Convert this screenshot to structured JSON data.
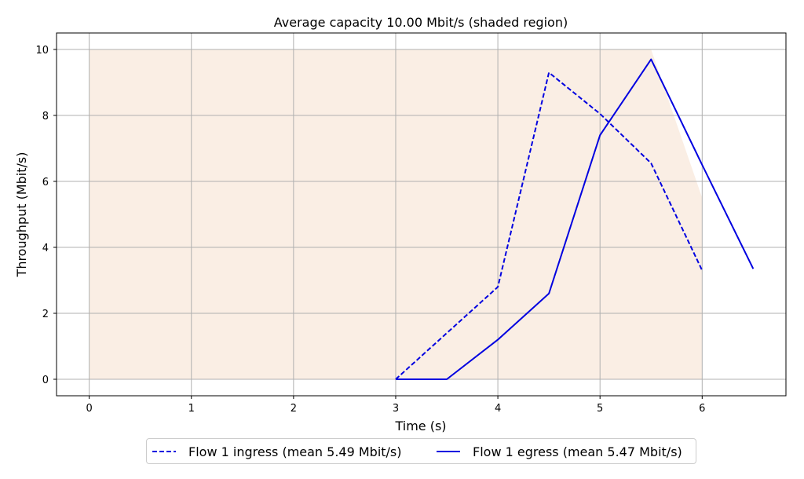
{
  "chart_data": {
    "type": "line",
    "title": "Average capacity 10.00 Mbit/s (shaded region)",
    "xlabel": "Time (s)",
    "ylabel": "Throughput (Mbit/s)",
    "xlim": [
      -0.32,
      6.82
    ],
    "ylim": [
      -0.5,
      10.5
    ],
    "xticks": [
      0,
      1,
      2,
      3,
      4,
      5,
      6
    ],
    "yticks": [
      0,
      2,
      4,
      6,
      8,
      10
    ],
    "grid": true,
    "legend_position": "bottom-center",
    "capacity": {
      "color": "#faeee4",
      "x": [
        0,
        5.5,
        6
      ],
      "y": [
        10,
        10,
        5.5
      ]
    },
    "series": [
      {
        "name": "Flow 1 ingress (mean 5.49 Mbit/s)",
        "style": "dashed",
        "color": "#0000e0",
        "x": [
          3.0,
          4.0,
          4.5,
          5.0,
          5.5,
          6.0
        ],
        "y": [
          0.0,
          2.8,
          9.3,
          8.05,
          6.55,
          3.3
        ]
      },
      {
        "name": "Flow 1 egress (mean 5.47 Mbit/s)",
        "style": "solid",
        "color": "#0000e0",
        "x": [
          3.0,
          3.5,
          4.0,
          4.5,
          5.0,
          5.5,
          6.0,
          6.5
        ],
        "y": [
          0.0,
          0.0,
          1.2,
          2.6,
          7.4,
          9.7,
          6.5,
          3.35
        ]
      }
    ]
  }
}
